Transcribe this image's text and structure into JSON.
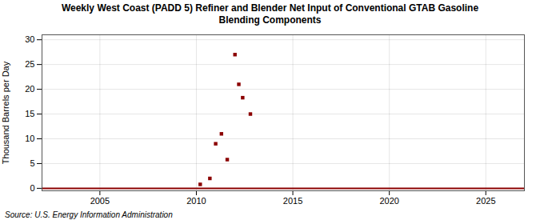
{
  "chart_data": {
    "type": "scatter",
    "title": "Weekly West Coast (PADD 5) Refiner and Blender Net Input of Conventional GTAB Gasoline\nBlending Components",
    "ylabel": "Thousand Barrels per Day",
    "source": "Source: U.S. Energy Information Administration",
    "x": [
      2010.2,
      2010.7,
      2011.0,
      2011.3,
      2011.6,
      2012.0,
      2012.2,
      2012.4,
      2012.8
    ],
    "values": [
      0.8,
      2.0,
      9.0,
      11.0,
      5.8,
      27.0,
      21.0,
      18.3,
      15.0
    ],
    "color": "#8b0000",
    "marker": "square",
    "hline": 0,
    "xlim": [
      2002,
      2027
    ],
    "ylim": [
      -0.5,
      31
    ],
    "xticks": [
      2005,
      2010,
      2015,
      2020,
      2025
    ],
    "yticks": [
      0,
      5,
      10,
      15,
      20,
      25,
      30
    ],
    "grid": true
  }
}
